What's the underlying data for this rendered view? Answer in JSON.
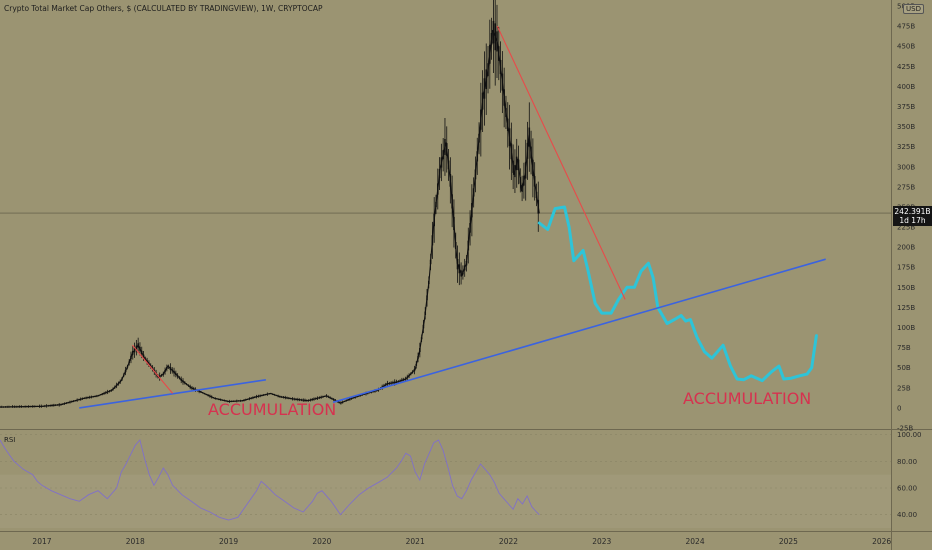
{
  "header": {
    "title": "Crypto Total Market Cap Others, $ (CALCULATED BY TRADINGVIEW), 1W, CRYPTOCAP",
    "currency": "USD",
    "price": "242.391B",
    "countdown": "1d 17h",
    "rsi_label": "RSI"
  },
  "annotations": {
    "left": "ACCUMULATION",
    "right": "ACCUMULATION"
  },
  "colors": {
    "background": "#9b9472",
    "candles": "#111111",
    "trendline": "#3b63e0",
    "downtrend": "#e84a4a",
    "projection": "#2ec4d8",
    "rsi": "#8070c8",
    "accumulation_text": "#d6324f"
  },
  "chart_data": [
    {
      "type": "line",
      "y_scale": "linear",
      "ytick_labels": [
        "-25B",
        "0",
        "25B",
        "50B",
        "75B",
        "100B",
        "125B",
        "150B",
        "175B",
        "200B",
        "225B",
        "250B",
        "275B",
        "300B",
        "325B",
        "350B",
        "375B",
        "400B",
        "425B",
        "450B",
        "475B",
        "500B"
      ],
      "y_ticks": [
        -25,
        0,
        25,
        50,
        75,
        100,
        125,
        150,
        175,
        200,
        225,
        250,
        275,
        300,
        325,
        350,
        375,
        400,
        425,
        450,
        475,
        500
      ],
      "xtick_labels": [
        "2017",
        "2018",
        "2019",
        "2020",
        "2021",
        "2022",
        "2023",
        "2024",
        "2025",
        "2026"
      ],
      "x_ticks": [
        2017,
        2018,
        2019,
        2020,
        2021,
        2022,
        2023,
        2024,
        2025,
        2026
      ],
      "xlim": [
        2016.55,
        2026.1
      ],
      "ylim": [
        -25,
        500
      ],
      "current_price": 242.391,
      "series": [
        {
          "points": [
            [
              2016.5,
              1
            ],
            [
              2017.0,
              2
            ],
            [
              2017.2,
              4
            ],
            [
              2017.45,
              12
            ],
            [
              2017.6,
              15
            ],
            [
              2017.75,
              22
            ],
            [
              2017.85,
              34
            ],
            [
              2017.92,
              52
            ],
            [
              2017.97,
              68
            ],
            [
              2018.03,
              78
            ],
            [
              2018.1,
              62
            ],
            [
              2018.18,
              50
            ],
            [
              2018.25,
              38
            ],
            [
              2018.3,
              42
            ],
            [
              2018.35,
              52
            ],
            [
              2018.42,
              44
            ],
            [
              2018.5,
              34
            ],
            [
              2018.6,
              25
            ],
            [
              2018.7,
              20
            ],
            [
              2018.85,
              12
            ],
            [
              2019.0,
              8
            ],
            [
              2019.15,
              9
            ],
            [
              2019.3,
              14
            ],
            [
              2019.45,
              18
            ],
            [
              2019.55,
              14
            ],
            [
              2019.7,
              11
            ],
            [
              2019.85,
              9
            ],
            [
              2019.95,
              12
            ],
            [
              2020.05,
              15
            ],
            [
              2020.2,
              6
            ],
            [
              2020.3,
              11
            ],
            [
              2020.45,
              17
            ],
            [
              2020.6,
              22
            ],
            [
              2020.7,
              30
            ],
            [
              2020.8,
              32
            ],
            [
              2020.9,
              36
            ],
            [
              2021.0,
              48
            ],
            [
              2021.05,
              72
            ],
            [
              2021.1,
              110
            ],
            [
              2021.15,
              160
            ],
            [
              2021.2,
              230
            ],
            [
              2021.27,
              300
            ],
            [
              2021.33,
              330
            ],
            [
              2021.38,
              280
            ],
            [
              2021.45,
              180
            ],
            [
              2021.5,
              165
            ],
            [
              2021.55,
              180
            ],
            [
              2021.62,
              260
            ],
            [
              2021.68,
              330
            ],
            [
              2021.73,
              390
            ],
            [
              2021.78,
              420
            ],
            [
              2021.83,
              470
            ],
            [
              2021.88,
              455
            ],
            [
              2021.92,
              420
            ],
            [
              2021.97,
              370
            ],
            [
              2022.02,
              330
            ],
            [
              2022.06,
              290
            ],
            [
              2022.1,
              310
            ],
            [
              2022.14,
              270
            ],
            [
              2022.18,
              290
            ],
            [
              2022.22,
              340
            ],
            [
              2022.26,
              300
            ],
            [
              2022.3,
              265
            ],
            [
              2022.33,
              242
            ]
          ]
        },
        {
          "points": [
            [
              2022.33,
              230
            ],
            [
              2022.42,
              222
            ],
            [
              2022.5,
              248
            ],
            [
              2022.6,
              250
            ],
            [
              2022.65,
              225
            ],
            [
              2022.7,
              183
            ],
            [
              2022.8,
              196
            ],
            [
              2022.85,
              172
            ],
            [
              2022.93,
              130
            ],
            [
              2023.0,
              118
            ],
            [
              2023.1,
              118
            ],
            [
              2023.18,
              135
            ],
            [
              2023.27,
              150
            ],
            [
              2023.35,
              150
            ],
            [
              2023.42,
              170
            ],
            [
              2023.5,
              180
            ],
            [
              2023.55,
              162
            ],
            [
              2023.6,
              125
            ],
            [
              2023.7,
              105
            ],
            [
              2023.78,
              110
            ],
            [
              2023.85,
              115
            ],
            [
              2023.9,
              108
            ],
            [
              2023.95,
              110
            ],
            [
              2024.02,
              88
            ],
            [
              2024.1,
              70
            ],
            [
              2024.18,
              62
            ],
            [
              2024.3,
              78
            ],
            [
              2024.38,
              52
            ],
            [
              2024.45,
              36
            ],
            [
              2024.52,
              35
            ],
            [
              2024.6,
              40
            ],
            [
              2024.72,
              34
            ],
            [
              2024.82,
              45
            ],
            [
              2024.9,
              52
            ],
            [
              2024.95,
              36
            ],
            [
              2025.03,
              37
            ],
            [
              2025.12,
              40
            ],
            [
              2025.2,
              42
            ],
            [
              2025.25,
              50
            ],
            [
              2025.3,
              90
            ]
          ]
        },
        {
          "points": [
            [
              2017.4,
              0
            ],
            [
              2019.4,
              35
            ]
          ]
        },
        {
          "points": [
            [
              2020.12,
              7
            ],
            [
              2025.4,
              185
            ]
          ]
        },
        {
          "points": [
            [
              2017.97,
              78
            ],
            [
              2018.4,
              18
            ]
          ]
        },
        {
          "points": [
            [
              2021.88,
              475
            ],
            [
              2023.25,
              135
            ]
          ]
        }
      ]
    },
    {
      "type": "line",
      "ytick_labels": [
        "40.00",
        "60.00",
        "80.00",
        "100.00"
      ],
      "y_ticks": [
        40,
        60,
        80,
        100
      ],
      "xlim": [
        2016.55,
        2026.1
      ],
      "ylim": [
        30,
        102
      ],
      "series": [
        {
          "points": [
            [
              2016.55,
              96
            ],
            [
              2016.6,
              90
            ],
            [
              2016.65,
              85
            ],
            [
              2016.7,
              80
            ],
            [
              2016.8,
              74
            ],
            [
              2016.9,
              70
            ],
            [
              2016.95,
              65
            ],
            [
              2017.0,
              62
            ],
            [
              2017.1,
              58
            ],
            [
              2017.2,
              55
            ],
            [
              2017.3,
              52
            ],
            [
              2017.4,
              50
            ],
            [
              2017.5,
              55
            ],
            [
              2017.6,
              58
            ],
            [
              2017.7,
              52
            ],
            [
              2017.8,
              60
            ],
            [
              2017.85,
              72
            ],
            [
              2017.9,
              78
            ],
            [
              2017.95,
              85
            ],
            [
              2018.0,
              92
            ],
            [
              2018.05,
              96
            ],
            [
              2018.1,
              82
            ],
            [
              2018.15,
              70
            ],
            [
              2018.2,
              62
            ],
            [
              2018.25,
              68
            ],
            [
              2018.3,
              75
            ],
            [
              2018.35,
              70
            ],
            [
              2018.4,
              62
            ],
            [
              2018.5,
              55
            ],
            [
              2018.6,
              50
            ],
            [
              2018.7,
              45
            ],
            [
              2018.8,
              42
            ],
            [
              2018.9,
              38
            ],
            [
              2019.0,
              36
            ],
            [
              2019.1,
              38
            ],
            [
              2019.2,
              48
            ],
            [
              2019.3,
              58
            ],
            [
              2019.35,
              65
            ],
            [
              2019.4,
              62
            ],
            [
              2019.5,
              55
            ],
            [
              2019.6,
              50
            ],
            [
              2019.7,
              45
            ],
            [
              2019.8,
              42
            ],
            [
              2019.9,
              50
            ],
            [
              2019.95,
              56
            ],
            [
              2020.0,
              58
            ],
            [
              2020.1,
              50
            ],
            [
              2020.2,
              40
            ],
            [
              2020.3,
              48
            ],
            [
              2020.4,
              55
            ],
            [
              2020.5,
              60
            ],
            [
              2020.6,
              64
            ],
            [
              2020.7,
              68
            ],
            [
              2020.8,
              75
            ],
            [
              2020.85,
              80
            ],
            [
              2020.9,
              86
            ],
            [
              2020.95,
              84
            ],
            [
              2021.0,
              72
            ],
            [
              2021.05,
              66
            ],
            [
              2021.1,
              78
            ],
            [
              2021.15,
              86
            ],
            [
              2021.2,
              94
            ],
            [
              2021.25,
              96
            ],
            [
              2021.3,
              88
            ],
            [
              2021.35,
              76
            ],
            [
              2021.4,
              62
            ],
            [
              2021.45,
              54
            ],
            [
              2021.5,
              52
            ],
            [
              2021.55,
              58
            ],
            [
              2021.6,
              66
            ],
            [
              2021.65,
              72
            ],
            [
              2021.7,
              78
            ],
            [
              2021.75,
              74
            ],
            [
              2021.8,
              70
            ],
            [
              2021.85,
              64
            ],
            [
              2021.9,
              56
            ],
            [
              2021.95,
              52
            ],
            [
              2022.0,
              48
            ],
            [
              2022.05,
              44
            ],
            [
              2022.1,
              52
            ],
            [
              2022.15,
              48
            ],
            [
              2022.2,
              54
            ],
            [
              2022.25,
              46
            ],
            [
              2022.3,
              42
            ],
            [
              2022.33,
              40
            ]
          ]
        }
      ]
    }
  ]
}
